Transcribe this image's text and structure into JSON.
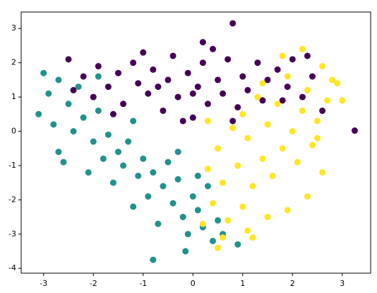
{
  "chart_data": {
    "type": "scatter",
    "xlim": [
      -3.45,
      3.57
    ],
    "ylim": [
      -4.14,
      3.48
    ],
    "xticks": [
      -3,
      -2,
      -1,
      0,
      1,
      2,
      3
    ],
    "yticks": [
      -4,
      -3,
      -2,
      -1,
      0,
      1,
      2,
      3
    ],
    "series": [
      {
        "color": "#440154",
        "x": [
          -2.4,
          -2.2,
          -2.0,
          -1.9,
          -1.7,
          -1.5,
          -1.4,
          -1.2,
          -1.1,
          -0.9,
          -0.8,
          -0.6,
          -0.5,
          -0.4,
          -0.3,
          -0.1,
          0.0,
          0.1,
          0.2,
          0.3,
          0.5,
          0.6,
          0.7,
          0.9,
          1.0,
          1.1,
          1.3,
          1.4,
          1.5,
          1.7,
          1.9,
          2.0,
          2.2,
          2.4,
          2.6,
          -2.5,
          -1.0,
          0.4,
          0.8,
          3.25,
          0.2,
          2.3,
          -0.2,
          0.8,
          -1.6,
          1.8,
          0.0,
          -0.7
        ],
        "values": [
          1.2,
          1.6,
          1.0,
          1.9,
          1.3,
          1.7,
          0.8,
          2.0,
          1.4,
          1.1,
          1.8,
          0.6,
          1.5,
          2.2,
          1.0,
          1.7,
          0.4,
          1.3,
          2.0,
          0.8,
          1.5,
          1.1,
          2.1,
          0.7,
          1.6,
          1.2,
          2.0,
          0.9,
          1.5,
          1.8,
          1.3,
          2.1,
          1.0,
          1.6,
          0.6,
          2.1,
          2.3,
          2.4,
          3.15,
          0.02,
          2.6,
          2.2,
          0.3,
          0.3,
          0.5,
          0.9,
          1.1,
          1.3
        ]
      },
      {
        "color": "#21918c",
        "x": [
          -3.1,
          -3.0,
          -2.9,
          -2.8,
          -2.7,
          -2.7,
          -2.5,
          -2.4,
          -2.3,
          -2.2,
          -2.1,
          -2.0,
          -1.9,
          -1.8,
          -1.7,
          -1.6,
          -1.5,
          -1.4,
          -1.3,
          -1.2,
          -1.1,
          -1.0,
          -0.9,
          -0.8,
          -0.7,
          -0.6,
          -0.5,
          -0.4,
          -0.3,
          -0.2,
          -0.1,
          0.0,
          0.1,
          0.2,
          0.3,
          0.4,
          0.5,
          0.6,
          -0.8,
          -0.15,
          -1.9,
          -1.2,
          -0.3,
          -2.6,
          0.1,
          0.9
        ],
        "values": [
          0.5,
          1.7,
          1.1,
          0.2,
          -0.6,
          1.5,
          0.8,
          0.0,
          1.3,
          0.4,
          -1.2,
          -0.3,
          0.6,
          -0.8,
          -0.1,
          -1.5,
          -0.6,
          -1.0,
          -0.3,
          -2.2,
          -1.3,
          -0.8,
          -1.9,
          -1.2,
          -2.7,
          -1.6,
          -0.9,
          -2.1,
          -1.4,
          -2.5,
          -3.0,
          -1.9,
          -2.3,
          -2.8,
          -1.6,
          -3.2,
          -2.6,
          -3.0,
          -3.75,
          -3.5,
          1.6,
          0.3,
          -0.6,
          -0.9,
          -1.3,
          -3.3
        ]
      },
      {
        "color": "#fde725",
        "x": [
          2.8,
          2.7,
          2.6,
          2.5,
          2.4,
          2.3,
          2.2,
          2.1,
          2.0,
          1.9,
          1.8,
          1.7,
          1.6,
          1.5,
          1.4,
          1.3,
          1.2,
          1.1,
          1.0,
          0.9,
          0.8,
          0.7,
          0.6,
          0.5,
          0.4,
          0.3,
          0.2,
          0.6,
          1.1,
          1.5,
          1.9,
          2.3,
          2.6,
          3.0,
          2.9,
          1.4,
          1.8,
          2.2,
          0.5,
          1.2,
          0.3,
          2.5,
          1.0
        ],
        "values": [
          1.5,
          0.9,
          1.9,
          0.3,
          -0.4,
          1.2,
          0.6,
          -0.9,
          0.0,
          1.6,
          -0.5,
          0.8,
          -1.3,
          0.2,
          -0.8,
          1.0,
          -1.6,
          -0.2,
          -2.2,
          -1.0,
          0.1,
          -2.6,
          -1.5,
          -0.5,
          -2.1,
          -1.1,
          -2.7,
          -3.1,
          -2.9,
          -2.5,
          -2.3,
          -1.9,
          -1.2,
          0.9,
          1.4,
          1.4,
          2.2,
          2.4,
          -3.4,
          -3.1,
          0.3,
          -0.2,
          0.5
        ]
      }
    ]
  }
}
